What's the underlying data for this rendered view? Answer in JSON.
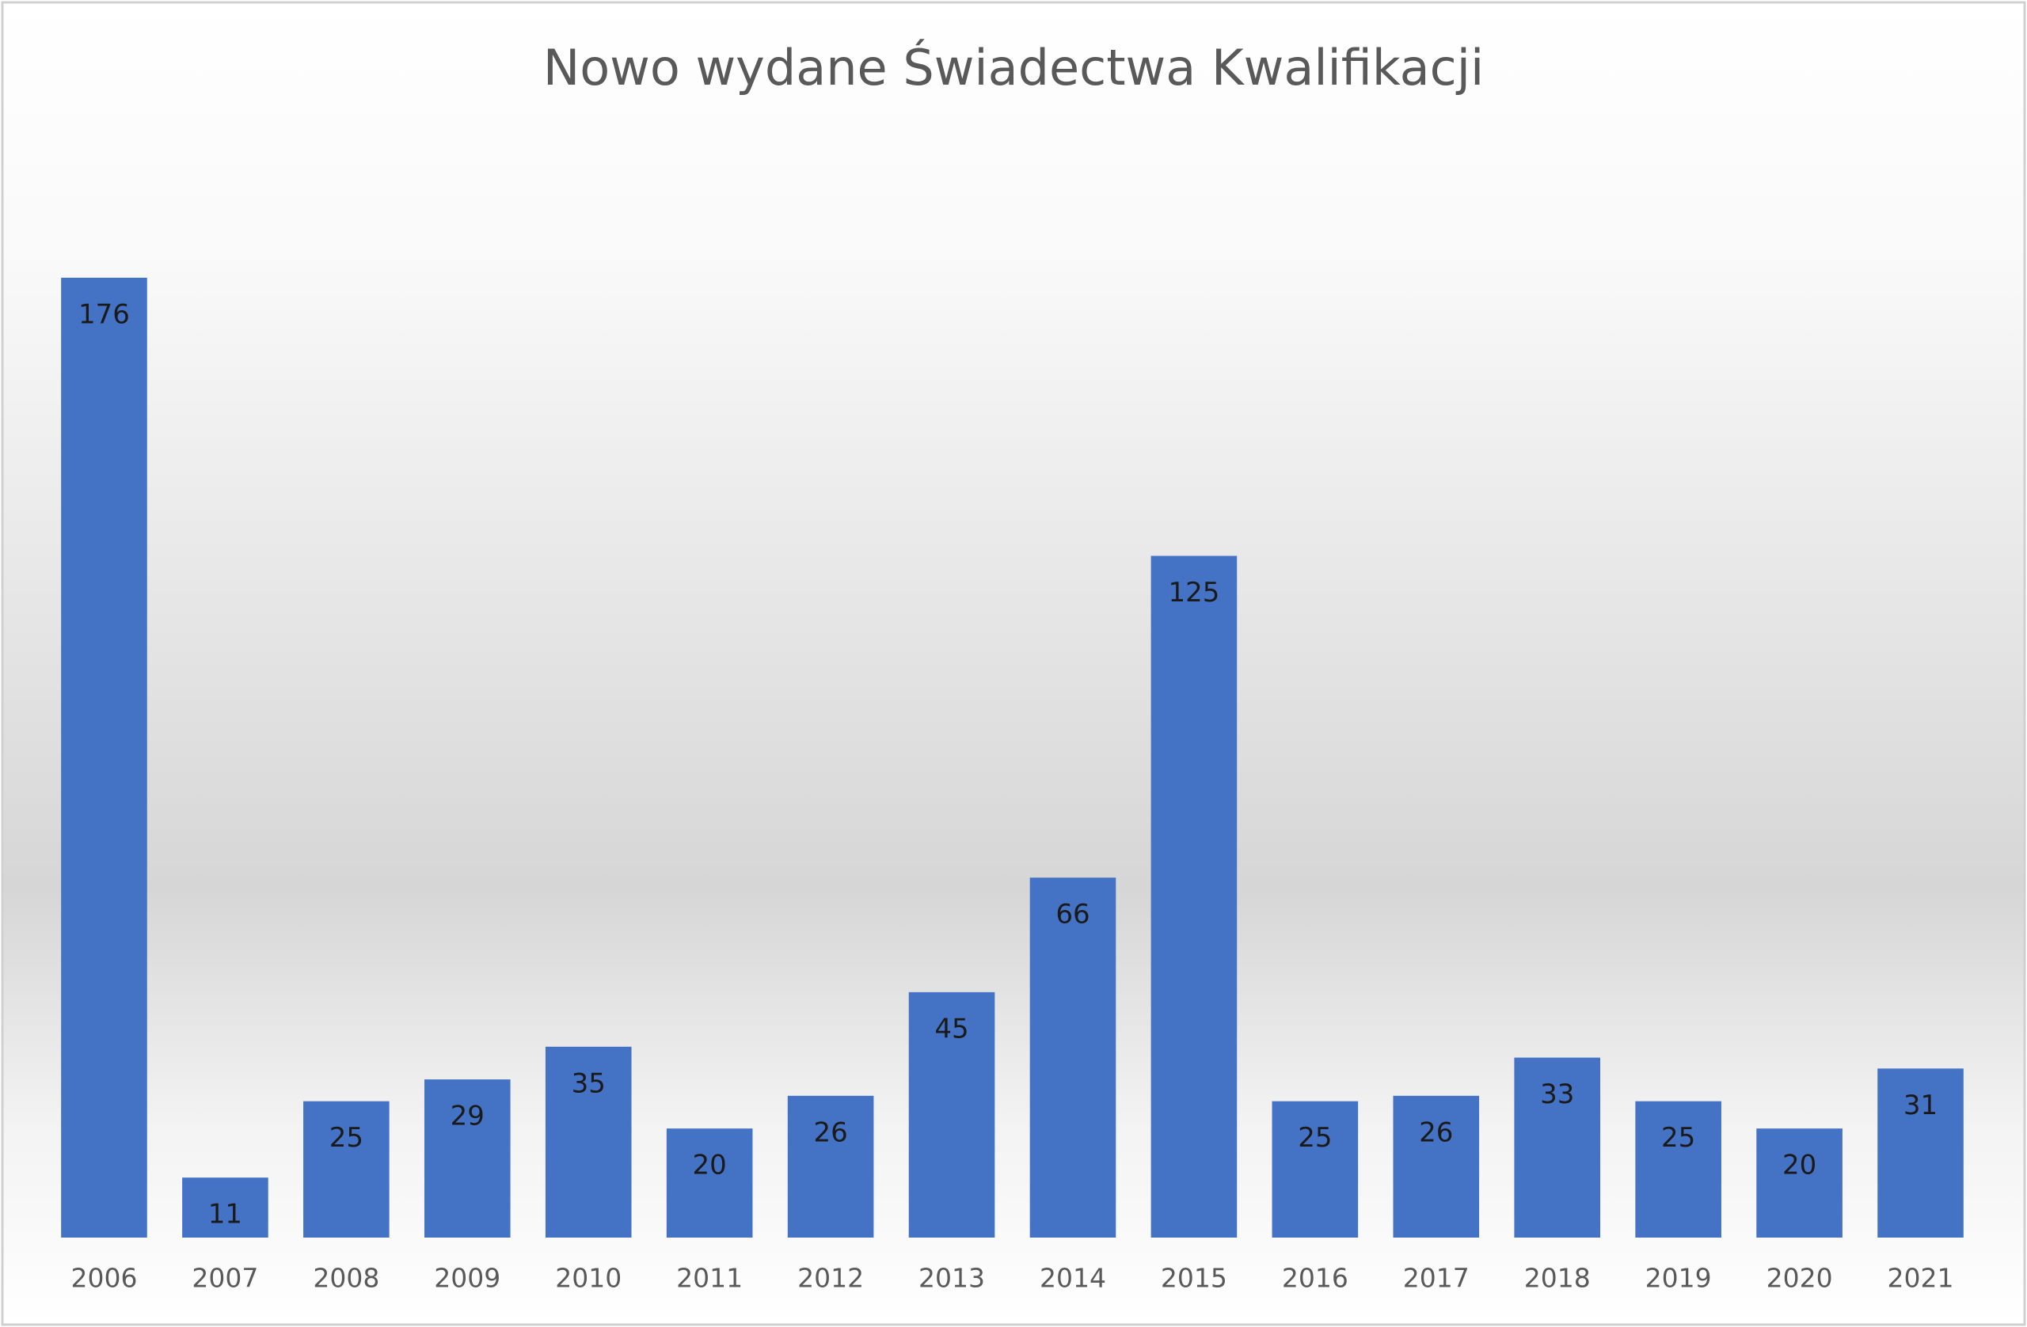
{
  "chart_data": {
    "type": "bar",
    "title": "Nowo wydane Świadectwa Kwalifikacji",
    "categories": [
      "2006",
      "2007",
      "2008",
      "2009",
      "2010",
      "2011",
      "2012",
      "2013",
      "2014",
      "2015",
      "2016",
      "2017",
      "2018",
      "2019",
      "2020",
      "2021"
    ],
    "values": [
      176,
      11,
      25,
      29,
      35,
      20,
      26,
      45,
      66,
      125,
      25,
      26,
      33,
      25,
      20,
      31
    ],
    "color": "#4472c4"
  }
}
